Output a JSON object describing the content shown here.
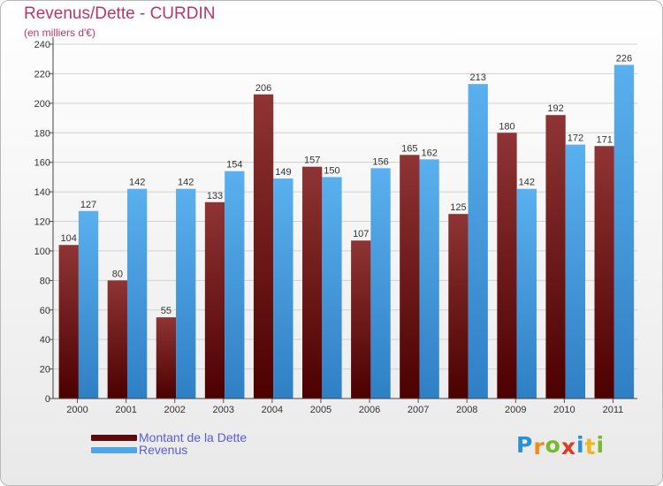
{
  "header": {
    "title": "Revenus/Dette - CURDIN",
    "subtitle": "(en milliers d'€)"
  },
  "chart_data": {
    "type": "bar",
    "title": "Revenus/Dette - CURDIN",
    "subtitle": "(en milliers d'€)",
    "categories": [
      "2000",
      "2001",
      "2002",
      "2003",
      "2004",
      "2005",
      "2006",
      "2007",
      "2008",
      "2009",
      "2010",
      "2011"
    ],
    "series": [
      {
        "name": "Montant de la Dette",
        "color": "#6e1414",
        "values": [
          104,
          80,
          55,
          133,
          206,
          157,
          107,
          165,
          125,
          180,
          192,
          171
        ]
      },
      {
        "name": "Revenus",
        "color": "#4ea6e6",
        "values": [
          127,
          142,
          142,
          154,
          149,
          150,
          156,
          162,
          213,
          142,
          172,
          226
        ]
      }
    ],
    "ylim": [
      0,
      240
    ],
    "yticks": [
      0,
      20,
      40,
      60,
      80,
      100,
      120,
      140,
      160,
      180,
      200,
      220,
      240
    ],
    "xlabel": "",
    "ylabel": "",
    "grid": true,
    "legend_position": "bottom-left"
  },
  "legend": {
    "items": [
      {
        "label": "Montant de la Dette",
        "color": "#6e1414"
      },
      {
        "label": "Revenus",
        "color": "#4ea6e6"
      }
    ]
  },
  "logo": {
    "letters": [
      "P",
      "r",
      "o",
      "x",
      "i",
      "t",
      "i"
    ],
    "colors": [
      "#2a8fd6",
      "#f08a1c",
      "#7ab82e",
      "#e03a1e",
      "#2a8fd6",
      "#f0b61c",
      "#7ab82e"
    ]
  }
}
